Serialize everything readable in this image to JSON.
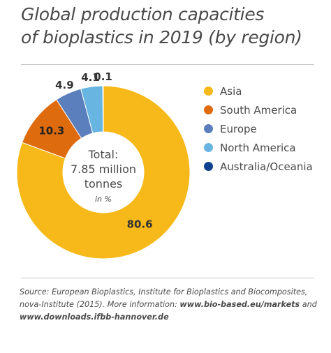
{
  "title_line1": "Global production capacities",
  "title_line2": "of bioplastics in 2019 (by region)",
  "chart_data": {
    "type": "pie",
    "categories": [
      "Asia",
      "South America",
      "Europe",
      "North America",
      "Australia/Oceania"
    ],
    "values": [
      80.6,
      10.3,
      4.9,
      4.1,
      0.1
    ],
    "value_labels": [
      "80.6",
      "10.3",
      "4.9",
      "4.1",
      "0.1"
    ],
    "colors": [
      "#f6b919",
      "#df6b0f",
      "#5b7fbd",
      "#68b5e2",
      "#0f3f8f"
    ],
    "center_text": [
      "Total:",
      "7.85 million",
      "tonnes"
    ],
    "center_unit": "in %",
    "legend_position": "right",
    "donut": true
  },
  "source": {
    "text1": "Source: European Bioplastics, Institute for Bioplastics and Biocomposites, nova-Institute (2015). More information: ",
    "link1": "www.bio-based.eu/markets",
    "text2": " and ",
    "link2": "www.downloads.ifbb-hannover.de"
  }
}
